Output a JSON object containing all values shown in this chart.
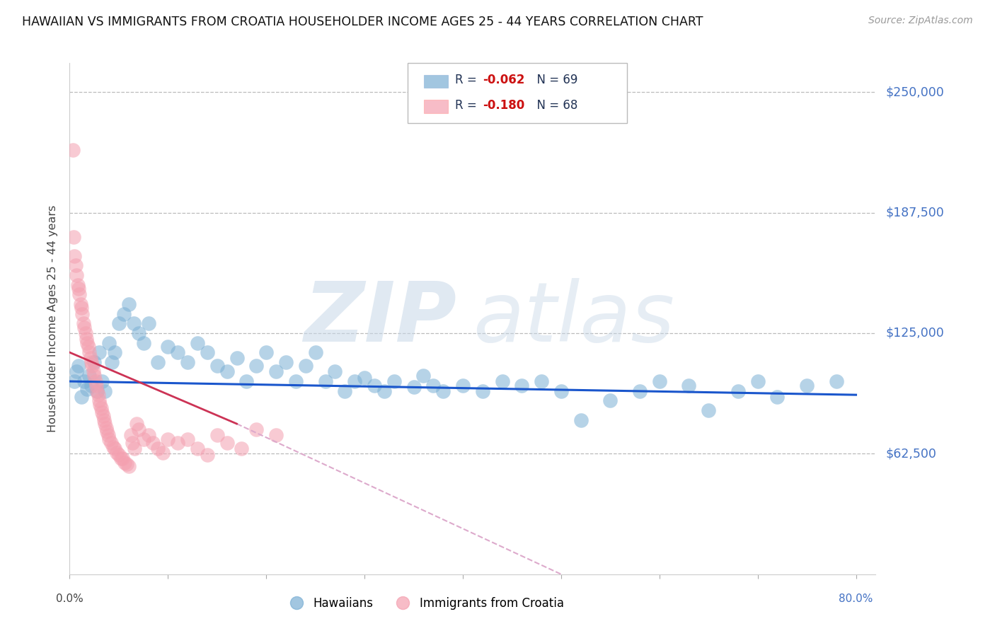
{
  "title": "HAWAIIAN VS IMMIGRANTS FROM CROATIA HOUSEHOLDER INCOME AGES 25 - 44 YEARS CORRELATION CHART",
  "source": "Source: ZipAtlas.com",
  "ylabel": "Householder Income Ages 25 - 44 years",
  "ylim": [
    0,
    265000
  ],
  "xlim": [
    0.0,
    0.82
  ],
  "blue_color": "#7BAFD4",
  "pink_color": "#F4A0B0",
  "trendline_blue": "#1A56CC",
  "trendline_pink": "#CC3355",
  "trendline_pink_dash": "#DDAACC",
  "watermark_zip": "ZIP",
  "watermark_atlas": "atlas",
  "legend2_hawaiians": "Hawaiians",
  "legend2_croatia": "Immigrants from Croatia",
  "hawaiians_x": [
    0.005,
    0.007,
    0.009,
    0.012,
    0.015,
    0.018,
    0.02,
    0.022,
    0.025,
    0.028,
    0.03,
    0.033,
    0.036,
    0.04,
    0.043,
    0.046,
    0.05,
    0.055,
    0.06,
    0.065,
    0.07,
    0.075,
    0.08,
    0.09,
    0.1,
    0.11,
    0.12,
    0.13,
    0.14,
    0.15,
    0.16,
    0.17,
    0.18,
    0.19,
    0.2,
    0.21,
    0.22,
    0.23,
    0.24,
    0.25,
    0.26,
    0.27,
    0.28,
    0.29,
    0.3,
    0.31,
    0.32,
    0.33,
    0.35,
    0.36,
    0.37,
    0.38,
    0.4,
    0.42,
    0.44,
    0.46,
    0.48,
    0.5,
    0.52,
    0.55,
    0.58,
    0.6,
    0.63,
    0.65,
    0.68,
    0.7,
    0.72,
    0.75,
    0.78
  ],
  "hawaiians_y": [
    100000,
    105000,
    108000,
    92000,
    100000,
    96000,
    103000,
    98000,
    110000,
    95000,
    115000,
    100000,
    95000,
    120000,
    110000,
    115000,
    130000,
    135000,
    140000,
    130000,
    125000,
    120000,
    130000,
    110000,
    118000,
    115000,
    110000,
    120000,
    115000,
    108000,
    105000,
    112000,
    100000,
    108000,
    115000,
    105000,
    110000,
    100000,
    108000,
    115000,
    100000,
    105000,
    95000,
    100000,
    102000,
    98000,
    95000,
    100000,
    97000,
    103000,
    98000,
    95000,
    98000,
    95000,
    100000,
    98000,
    100000,
    95000,
    80000,
    90000,
    95000,
    100000,
    98000,
    85000,
    95000,
    100000,
    92000,
    98000,
    100000
  ],
  "croatia_x": [
    0.003,
    0.004,
    0.005,
    0.006,
    0.007,
    0.008,
    0.009,
    0.01,
    0.011,
    0.012,
    0.013,
    0.014,
    0.015,
    0.016,
    0.017,
    0.018,
    0.019,
    0.02,
    0.021,
    0.022,
    0.023,
    0.024,
    0.025,
    0.026,
    0.027,
    0.028,
    0.029,
    0.03,
    0.031,
    0.032,
    0.033,
    0.034,
    0.035,
    0.036,
    0.037,
    0.038,
    0.039,
    0.04,
    0.042,
    0.044,
    0.046,
    0.048,
    0.05,
    0.052,
    0.054,
    0.056,
    0.058,
    0.06,
    0.062,
    0.064,
    0.066,
    0.068,
    0.07,
    0.075,
    0.08,
    0.085,
    0.09,
    0.095,
    0.1,
    0.11,
    0.12,
    0.13,
    0.14,
    0.15,
    0.16,
    0.175,
    0.19,
    0.21
  ],
  "croatia_y": [
    220000,
    175000,
    165000,
    160000,
    155000,
    150000,
    148000,
    145000,
    140000,
    138000,
    135000,
    130000,
    128000,
    125000,
    122000,
    120000,
    118000,
    115000,
    112000,
    110000,
    108000,
    105000,
    103000,
    100000,
    98000,
    95000,
    93000,
    90000,
    88000,
    86000,
    84000,
    82000,
    80000,
    78000,
    76000,
    74000,
    72000,
    70000,
    68000,
    66000,
    65000,
    63000,
    62000,
    60000,
    60000,
    58000,
    57000,
    56000,
    72000,
    68000,
    65000,
    78000,
    75000,
    70000,
    72000,
    68000,
    65000,
    63000,
    70000,
    68000,
    70000,
    65000,
    62000,
    72000,
    68000,
    65000,
    75000,
    72000
  ]
}
